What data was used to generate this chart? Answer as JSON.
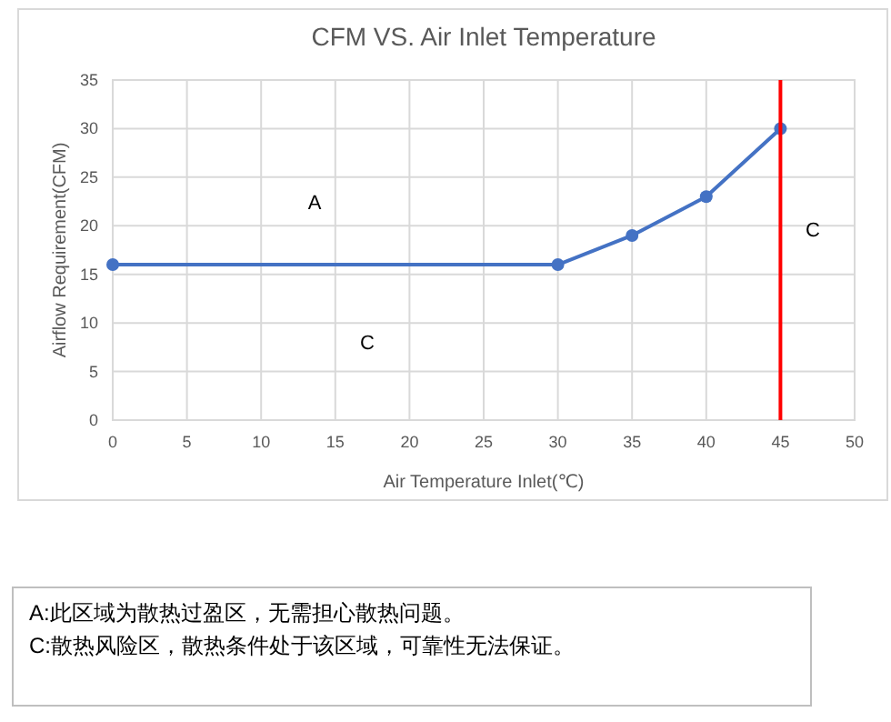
{
  "chart_data": {
    "type": "line",
    "title": "CFM VS. Air Inlet Temperature",
    "xlabel": "Air Temperature Inlet(℃)",
    "ylabel": "Airflow Requirement(CFM)",
    "x": [
      0,
      30,
      35,
      40,
      45
    ],
    "series": [
      {
        "color": "#4472c4",
        "values": [
          16,
          16,
          19,
          23,
          30
        ]
      }
    ],
    "xlim": [
      0,
      50
    ],
    "xticks": [
      0,
      5,
      10,
      15,
      20,
      25,
      30,
      35,
      40,
      45,
      50
    ],
    "ylim": [
      0,
      35
    ],
    "yticks": [
      0,
      5,
      10,
      15,
      20,
      25,
      30,
      35
    ],
    "grid": true,
    "marker": "circle",
    "line_style": "solid",
    "ref_lines": [
      {
        "axis": "x",
        "value": 45,
        "color": "#ff0000"
      }
    ],
    "annotations": [
      "A",
      "C",
      "C",
      "A:此区域为散热过盈区，无需担心散热问题。",
      "C:散热风险区，散热条件处于该区域，可靠性无法保证。"
    ]
  }
}
